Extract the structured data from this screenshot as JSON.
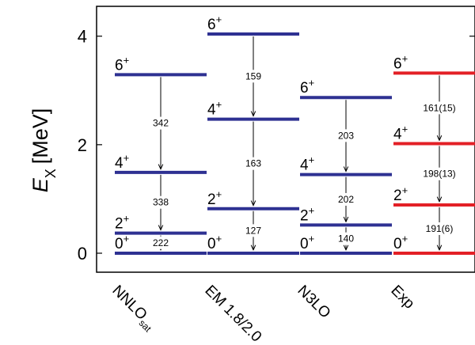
{
  "chart_data": {
    "type": "level-scheme",
    "ylabel": "E",
    "ylabel_subscript": "X",
    "ylabel_unit": "[MeV]",
    "ylim": [
      -0.35,
      4.55
    ],
    "yticks": [
      0,
      2,
      4
    ],
    "categories": [
      {
        "name": "NNLO",
        "subscript": "sat"
      },
      {
        "name": "EM 1.8/2.0",
        "subscript": ""
      },
      {
        "name": "N3LO",
        "subscript": ""
      },
      {
        "name": "Exp",
        "subscript": ""
      }
    ],
    "columns": [
      {
        "color": "#2e3192",
        "levels": [
          {
            "spin": "0",
            "parity": "+",
            "energy": 0.0
          },
          {
            "spin": "2",
            "parity": "+",
            "energy": 0.37
          },
          {
            "spin": "4",
            "parity": "+",
            "energy": 1.49
          },
          {
            "spin": "6",
            "parity": "+",
            "energy": 3.29
          }
        ],
        "transitions": [
          {
            "from": 3,
            "to": 2,
            "label": "342"
          },
          {
            "from": 2,
            "to": 1,
            "label": "338"
          },
          {
            "from": 1,
            "to": 0,
            "label": "222"
          }
        ]
      },
      {
        "color": "#2e3192",
        "levels": [
          {
            "spin": "0",
            "parity": "+",
            "energy": 0.0
          },
          {
            "spin": "2",
            "parity": "+",
            "energy": 0.82
          },
          {
            "spin": "4",
            "parity": "+",
            "energy": 2.47
          },
          {
            "spin": "6",
            "parity": "+",
            "energy": 4.04
          }
        ],
        "transitions": [
          {
            "from": 3,
            "to": 2,
            "label": "159"
          },
          {
            "from": 2,
            "to": 1,
            "label": "163"
          },
          {
            "from": 1,
            "to": 0,
            "label": "127"
          }
        ]
      },
      {
        "color": "#2e3192",
        "levels": [
          {
            "spin": "0",
            "parity": "+",
            "energy": 0.0
          },
          {
            "spin": "2",
            "parity": "+",
            "energy": 0.52
          },
          {
            "spin": "4",
            "parity": "+",
            "energy": 1.45
          },
          {
            "spin": "6",
            "parity": "+",
            "energy": 2.87
          }
        ],
        "transitions": [
          {
            "from": 3,
            "to": 2,
            "label": "203"
          },
          {
            "from": 2,
            "to": 1,
            "label": "202"
          },
          {
            "from": 1,
            "to": 0,
            "label": "140"
          }
        ]
      },
      {
        "color": "#e32026",
        "levels": [
          {
            "spin": "0",
            "parity": "+",
            "energy": 0.0
          },
          {
            "spin": "2",
            "parity": "+",
            "energy": 0.89
          },
          {
            "spin": "4",
            "parity": "+",
            "energy": 2.02
          },
          {
            "spin": "6",
            "parity": "+",
            "energy": 3.32
          }
        ],
        "transitions": [
          {
            "from": 3,
            "to": 2,
            "label": "161(15)"
          },
          {
            "from": 2,
            "to": 1,
            "label": "198(13)"
          },
          {
            "from": 1,
            "to": 0,
            "label": "191(6)"
          }
        ]
      }
    ]
  }
}
